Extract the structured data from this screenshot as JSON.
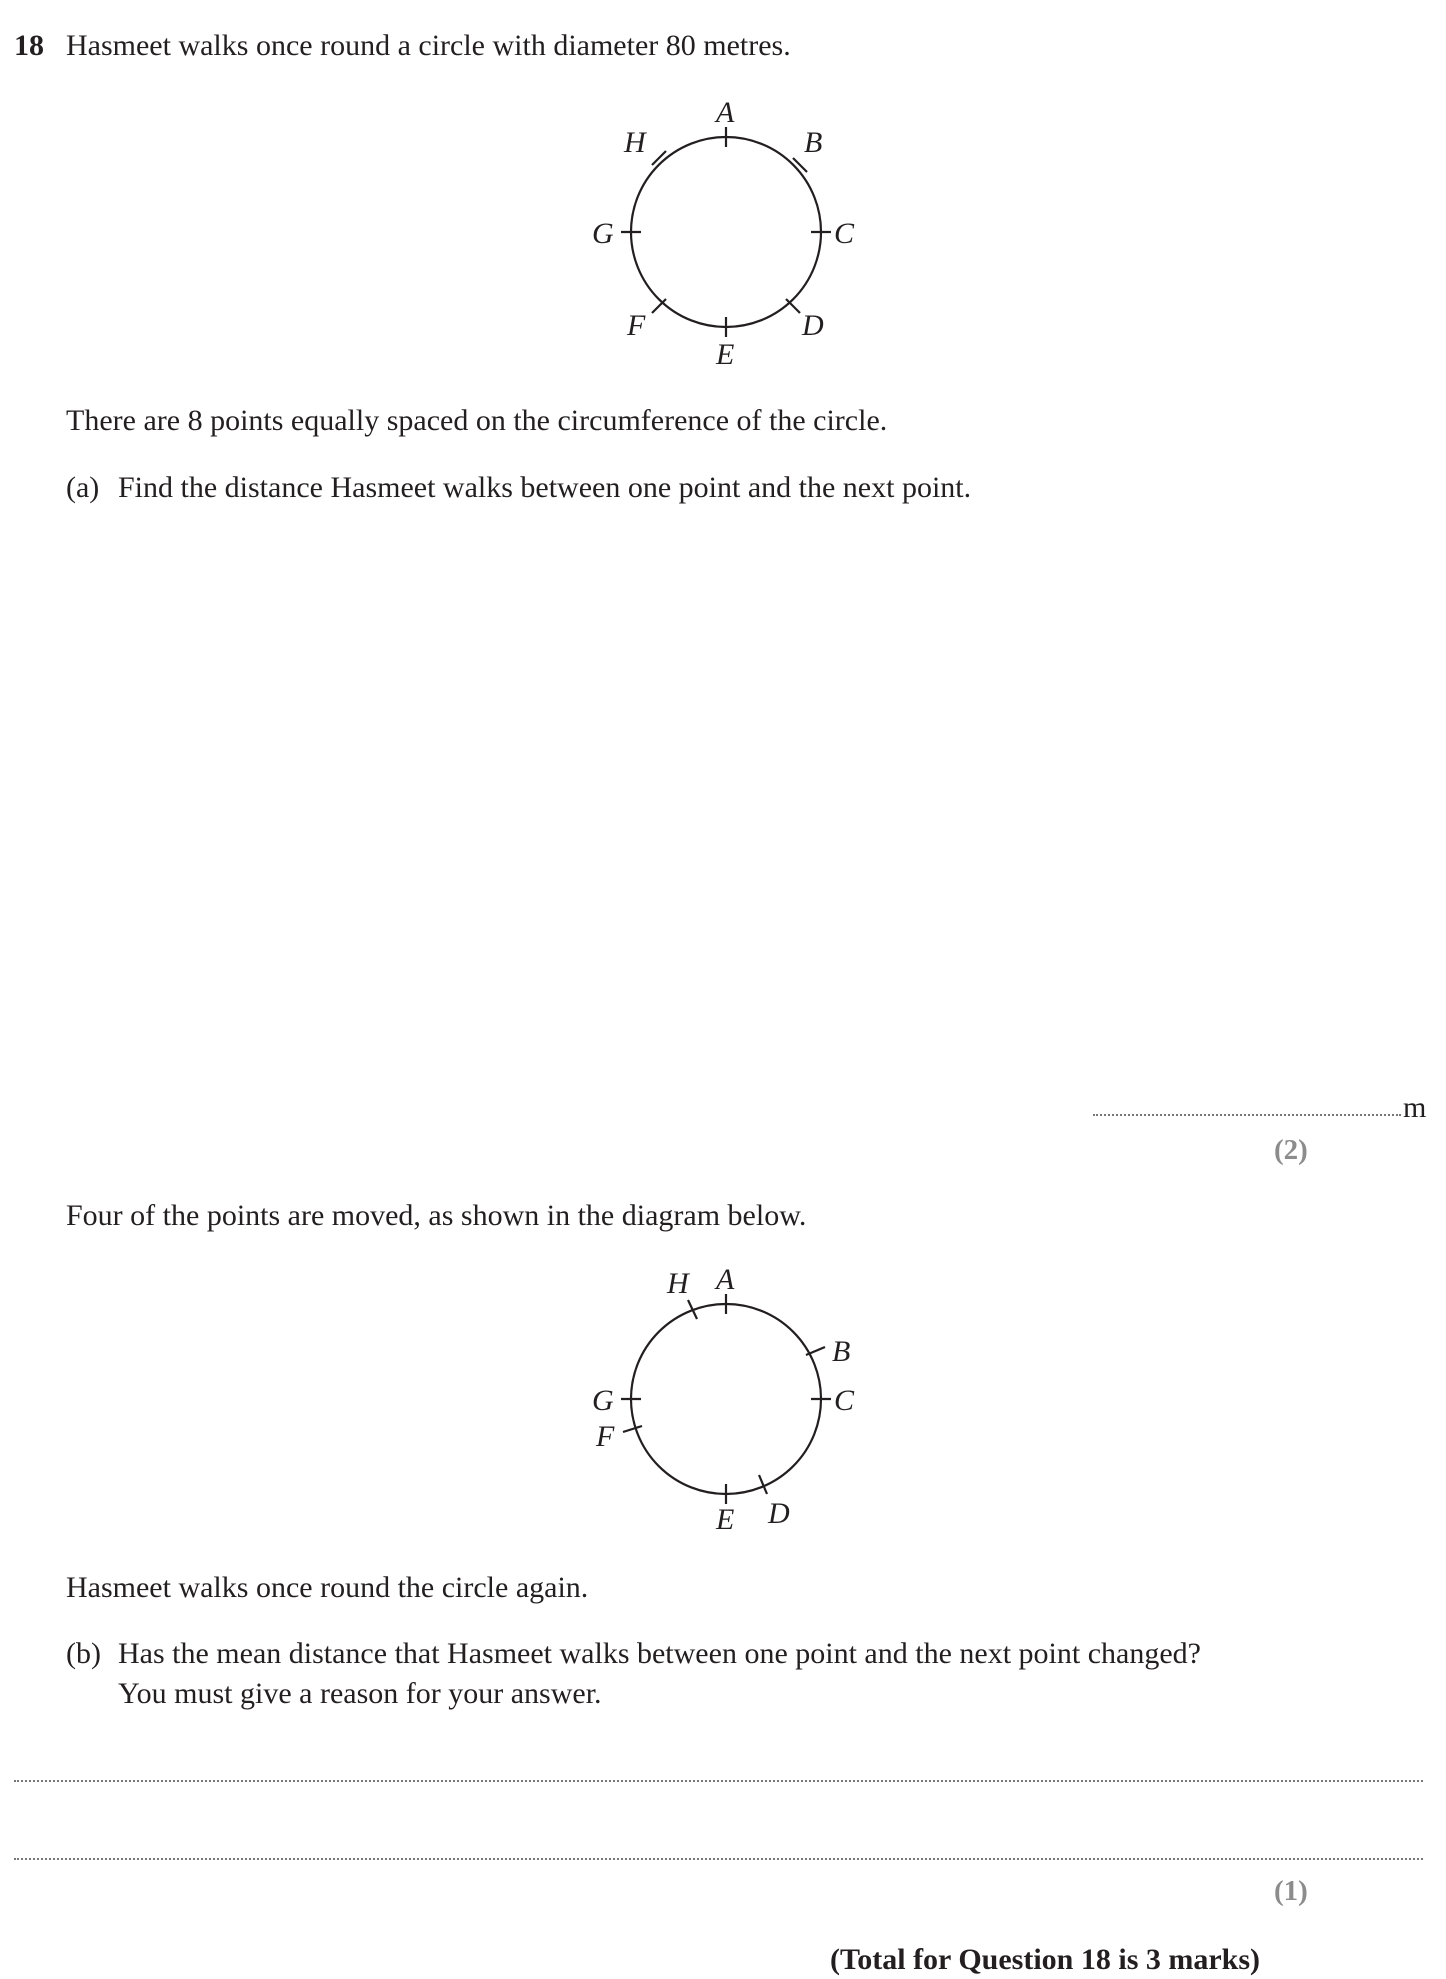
{
  "question": {
    "number": "18",
    "intro": "Hasmeet walks once round a circle with diameter 80 metres.",
    "points_info": "There are 8 points equally spaced on the circumference of the circle.",
    "part_a": {
      "label": "(a)",
      "text": "Find the distance Hasmeet walks between one point and the next point.",
      "answer_unit": "m",
      "marks": "(2)"
    },
    "moved_info": "Four of the points are moved, as shown in the diagram below.",
    "walk_again": "Hasmeet walks once round the circle again.",
    "part_b": {
      "label": "(b)",
      "line1": "Has the mean distance that Hasmeet walks between one point and the next point changed?",
      "line2": "You must give a reason for your answer.",
      "marks": "(1)"
    },
    "total": "(Total for Question 18 is 3 marks)"
  },
  "diagram1": {
    "labels": {
      "A": "A",
      "B": "B",
      "C": "C",
      "D": "D",
      "E": "E",
      "F": "F",
      "G": "G",
      "H": "H"
    }
  },
  "diagram2": {
    "labels": {
      "A": "A",
      "B": "B",
      "C": "C",
      "D": "D",
      "E": "E",
      "F": "F",
      "G": "G",
      "H": "H"
    }
  }
}
